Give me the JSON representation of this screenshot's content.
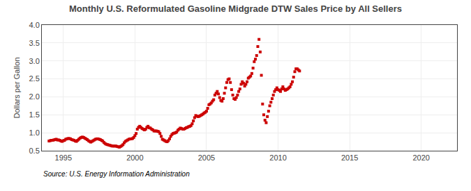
{
  "chart_data": {
    "type": "scatter",
    "title": "Monthly U.S. Reformulated Gasoline Midgrade DTW Sales Price by All Sellers",
    "ylabel": "Dollars per Gallon",
    "annotations": [
      "Source: U.S. Energy Information Administration"
    ],
    "xlim": [
      1993.5,
      2022.5
    ],
    "ylim": [
      0.5,
      4.0
    ],
    "xticks": [
      1995,
      2000,
      2005,
      2010,
      2015,
      2020
    ],
    "yticks": [
      0.5,
      {
        "value": 1.0,
        "label": "1.0"
      },
      1.5,
      {
        "value": 2.0,
        "label": "2.0"
      },
      2.5,
      {
        "value": 3.0,
        "label": "3.0"
      },
      3.5,
      {
        "value": 4.0,
        "label": "4.0"
      }
    ],
    "grid": true,
    "color": "#CC0000",
    "marker": "square",
    "x": [
      1994.0,
      1994.083,
      1994.167,
      1994.25,
      1994.333,
      1994.417,
      1994.5,
      1994.583,
      1994.667,
      1994.75,
      1994.833,
      1994.917,
      1995.0,
      1995.083,
      1995.167,
      1995.25,
      1995.333,
      1995.417,
      1995.5,
      1995.583,
      1995.667,
      1995.75,
      1995.833,
      1995.917,
      1996.0,
      1996.083,
      1996.167,
      1996.25,
      1996.333,
      1996.417,
      1996.5,
      1996.583,
      1996.667,
      1996.75,
      1996.833,
      1996.917,
      1997.0,
      1997.083,
      1997.167,
      1997.25,
      1997.333,
      1997.417,
      1997.5,
      1997.583,
      1997.667,
      1997.75,
      1997.833,
      1997.917,
      1998.0,
      1998.083,
      1998.167,
      1998.25,
      1998.333,
      1998.417,
      1998.5,
      1998.583,
      1998.667,
      1998.75,
      1998.833,
      1998.917,
      1999.0,
      1999.083,
      1999.167,
      1999.25,
      1999.333,
      1999.417,
      1999.5,
      1999.583,
      1999.667,
      1999.75,
      1999.833,
      1999.917,
      2000.0,
      2000.083,
      2000.167,
      2000.25,
      2000.333,
      2000.417,
      2000.5,
      2000.583,
      2000.667,
      2000.75,
      2000.833,
      2000.917,
      2001.0,
      2001.083,
      2001.167,
      2001.25,
      2001.333,
      2001.417,
      2001.5,
      2001.583,
      2001.667,
      2001.75,
      2001.833,
      2001.917,
      2002.0,
      2002.083,
      2002.167,
      2002.25,
      2002.333,
      2002.417,
      2002.5,
      2002.583,
      2002.667,
      2002.75,
      2002.833,
      2002.917,
      2003.0,
      2003.083,
      2003.167,
      2003.25,
      2003.333,
      2003.417,
      2003.5,
      2003.583,
      2003.667,
      2003.75,
      2003.833,
      2003.917,
      2004.0,
      2004.083,
      2004.167,
      2004.25,
      2004.333,
      2004.417,
      2004.5,
      2004.583,
      2004.667,
      2004.75,
      2004.833,
      2004.917,
      2005.0,
      2005.083,
      2005.167,
      2005.25,
      2005.333,
      2005.417,
      2005.5,
      2005.583,
      2005.667,
      2005.75,
      2005.833,
      2005.917,
      2006.0,
      2006.083,
      2006.167,
      2006.25,
      2006.333,
      2006.417,
      2006.5,
      2006.583,
      2006.667,
      2006.75,
      2006.833,
      2006.917,
      2007.0,
      2007.083,
      2007.167,
      2007.25,
      2007.333,
      2007.417,
      2007.5,
      2007.583,
      2007.667,
      2007.75,
      2007.833,
      2007.917,
      2008.0,
      2008.083,
      2008.167,
      2008.25,
      2008.333,
      2008.417,
      2008.5,
      2008.583,
      2008.667,
      2008.75,
      2008.833,
      2008.917,
      2009.0,
      2009.083,
      2009.167,
      2009.25,
      2009.333,
      2009.417,
      2009.5,
      2009.583,
      2009.667,
      2009.75,
      2009.833,
      2009.917,
      2010.0,
      2010.083,
      2010.167,
      2010.25,
      2010.333,
      2010.417,
      2010.5,
      2010.583,
      2010.667,
      2010.75,
      2010.833,
      2010.917,
      2011.0,
      2011.083,
      2011.167,
      2011.25,
      2011.333,
      2011.417,
      2011.5
    ],
    "values": [
      0.77,
      0.78,
      0.79,
      0.79,
      0.8,
      0.81,
      0.82,
      0.8,
      0.8,
      0.79,
      0.77,
      0.76,
      0.78,
      0.79,
      0.82,
      0.83,
      0.84,
      0.84,
      0.83,
      0.81,
      0.8,
      0.79,
      0.77,
      0.76,
      0.79,
      0.82,
      0.85,
      0.87,
      0.88,
      0.87,
      0.85,
      0.83,
      0.81,
      0.78,
      0.76,
      0.74,
      0.76,
      0.78,
      0.8,
      0.82,
      0.83,
      0.83,
      0.82,
      0.81,
      0.79,
      0.77,
      0.73,
      0.7,
      0.68,
      0.67,
      0.66,
      0.65,
      0.64,
      0.63,
      0.63,
      0.63,
      0.63,
      0.62,
      0.61,
      0.6,
      0.62,
      0.64,
      0.67,
      0.72,
      0.76,
      0.78,
      0.8,
      0.82,
      0.83,
      0.83,
      0.84,
      0.87,
      0.92,
      0.98,
      1.1,
      1.15,
      1.18,
      1.15,
      1.12,
      1.1,
      1.08,
      1.1,
      1.15,
      1.18,
      1.14,
      1.13,
      1.1,
      1.08,
      1.05,
      1.05,
      1.05,
      1.04,
      1.03,
      0.98,
      0.9,
      0.82,
      0.8,
      0.78,
      0.76,
      0.75,
      0.78,
      0.83,
      0.9,
      0.95,
      0.98,
      0.99,
      1.0,
      1.02,
      1.07,
      1.1,
      1.13,
      1.12,
      1.1,
      1.1,
      1.12,
      1.14,
      1.15,
      1.17,
      1.18,
      1.2,
      1.25,
      1.33,
      1.42,
      1.48,
      1.46,
      1.45,
      1.46,
      1.48,
      1.5,
      1.52,
      1.55,
      1.57,
      1.6,
      1.68,
      1.78,
      1.8,
      1.83,
      1.88,
      1.92,
      2.05,
      2.1,
      2.15,
      2.08,
      1.98,
      1.9,
      1.88,
      1.95,
      2.1,
      2.25,
      2.4,
      2.48,
      2.5,
      2.4,
      2.2,
      2.05,
      1.95,
      1.93,
      1.98,
      2.05,
      2.15,
      2.22,
      2.35,
      2.42,
      2.38,
      2.3,
      2.35,
      2.42,
      2.52,
      2.55,
      2.58,
      2.65,
      2.8,
      2.98,
      3.05,
      3.15,
      3.4,
      3.6,
      3.25,
      2.6,
      1.8,
      1.5,
      1.35,
      1.28,
      1.45,
      1.6,
      1.75,
      1.85,
      1.95,
      2.05,
      2.15,
      2.2,
      2.25,
      2.2,
      2.18,
      2.15,
      2.22,
      2.28,
      2.22,
      2.18,
      2.2,
      2.22,
      2.25,
      2.28,
      2.35,
      2.42,
      2.55,
      2.7,
      2.78,
      2.78,
      2.75,
      2.72
    ]
  }
}
